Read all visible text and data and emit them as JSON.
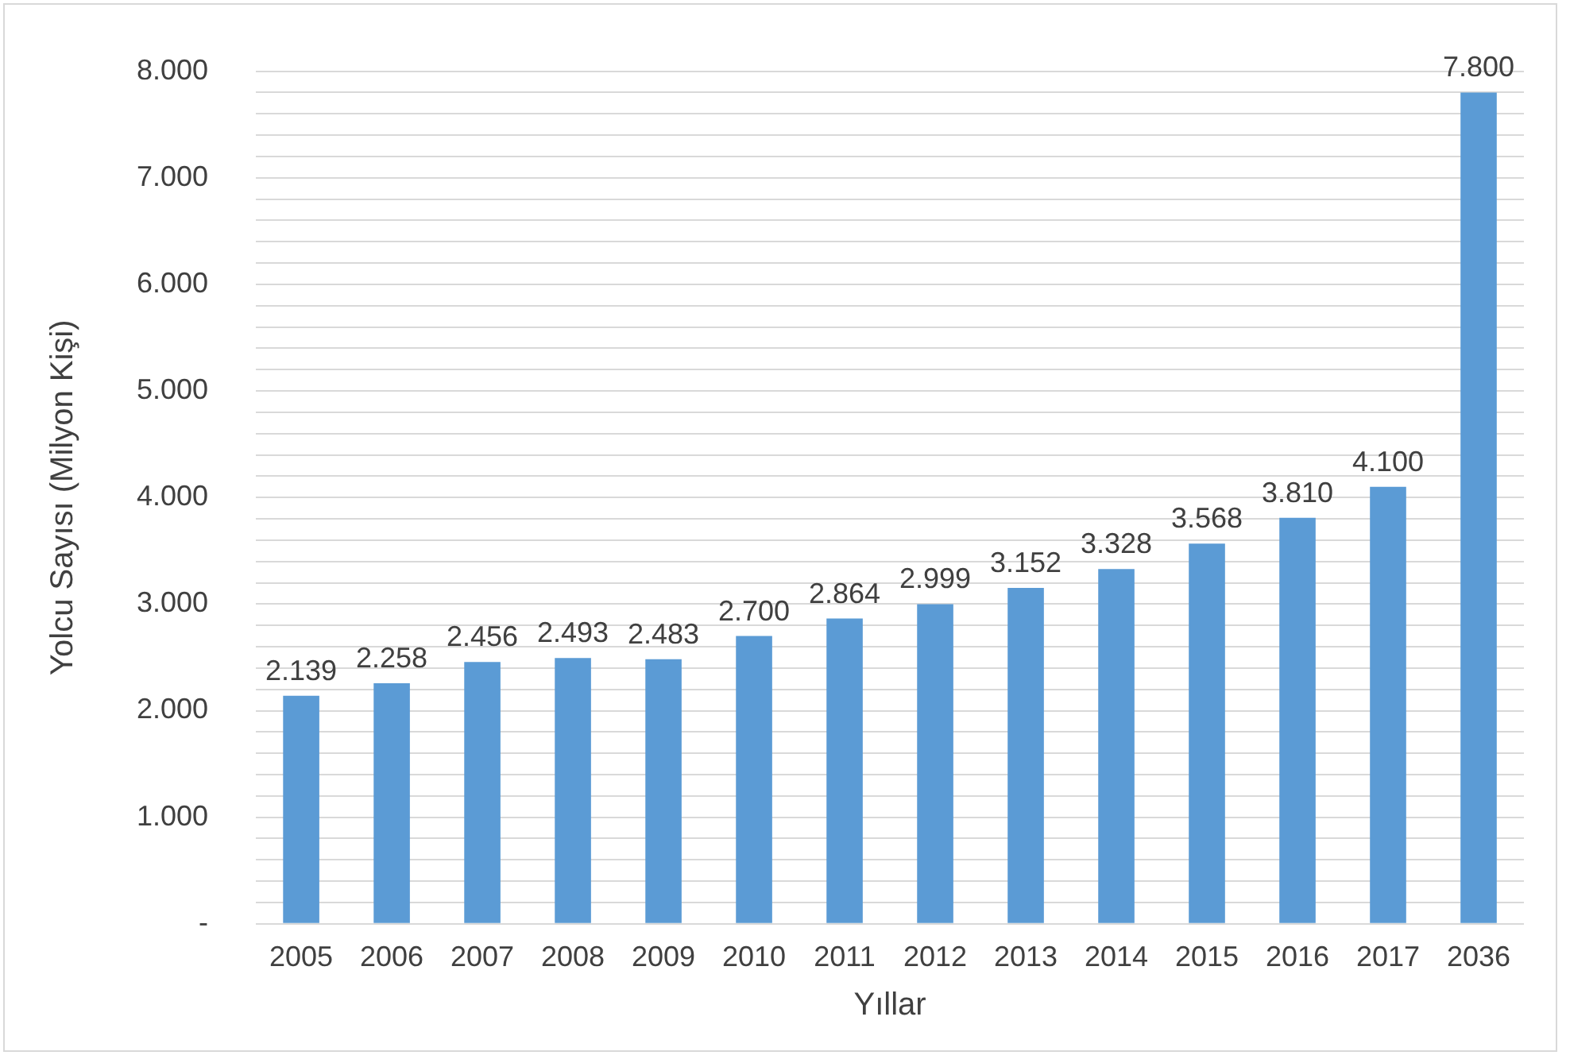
{
  "chart_data": {
    "type": "bar",
    "xlabel": "Yıllar",
    "ylabel": "Yolcu Sayısı (Milyon Kişi)",
    "categories": [
      "2005",
      "2006",
      "2007",
      "2008",
      "2009",
      "2010",
      "2011",
      "2012",
      "2013",
      "2014",
      "2015",
      "2016",
      "2017",
      "2036"
    ],
    "values": [
      2139,
      2258,
      2456,
      2493,
      2483,
      2700,
      2864,
      2999,
      3152,
      3328,
      3568,
      3810,
      4100,
      7800
    ],
    "value_labels": [
      "2.139",
      "2.258",
      "2.456",
      "2.493",
      "2.483",
      "2.700",
      "2.864",
      "2.999",
      "3.152",
      "3.328",
      "3.568",
      "3.810",
      "4.100",
      "7.800"
    ],
    "color": "#5b9bd5",
    "ylim": [
      0,
      8000
    ],
    "yticks": [
      {
        "value": 0,
        "label": "-"
      },
      {
        "value": 200,
        "label": null
      },
      {
        "value": 400,
        "label": null
      },
      {
        "value": 600,
        "label": null
      },
      {
        "value": 800,
        "label": null
      },
      {
        "value": 1000,
        "label": "1.000"
      },
      {
        "value": 1200,
        "label": null
      },
      {
        "value": 1400,
        "label": null
      },
      {
        "value": 1600,
        "label": null
      },
      {
        "value": 1800,
        "label": null
      },
      {
        "value": 2000,
        "label": "2.000"
      },
      {
        "value": 2200,
        "label": null
      },
      {
        "value": 2400,
        "label": null
      },
      {
        "value": 2600,
        "label": null
      },
      {
        "value": 2800,
        "label": null
      },
      {
        "value": 3000,
        "label": "3.000"
      },
      {
        "value": 3200,
        "label": null
      },
      {
        "value": 3400,
        "label": null
      },
      {
        "value": 3600,
        "label": null
      },
      {
        "value": 3800,
        "label": null
      },
      {
        "value": 4000,
        "label": "4.000"
      },
      {
        "value": 4200,
        "label": null
      },
      {
        "value": 4400,
        "label": null
      },
      {
        "value": 4600,
        "label": null
      },
      {
        "value": 4800,
        "label": null
      },
      {
        "value": 5000,
        "label": "5.000"
      },
      {
        "value": 5200,
        "label": null
      },
      {
        "value": 5400,
        "label": null
      },
      {
        "value": 5600,
        "label": null
      },
      {
        "value": 5800,
        "label": null
      },
      {
        "value": 6000,
        "label": "6.000"
      },
      {
        "value": 6200,
        "label": null
      },
      {
        "value": 6400,
        "label": null
      },
      {
        "value": 6600,
        "label": null
      },
      {
        "value": 6800,
        "label": null
      },
      {
        "value": 7000,
        "label": "7.000"
      },
      {
        "value": 7200,
        "label": null
      },
      {
        "value": 7400,
        "label": null
      },
      {
        "value": 7600,
        "label": null
      },
      {
        "value": 7800,
        "label": null
      },
      {
        "value": 8000,
        "label": "8.000"
      }
    ],
    "grid": "y"
  }
}
